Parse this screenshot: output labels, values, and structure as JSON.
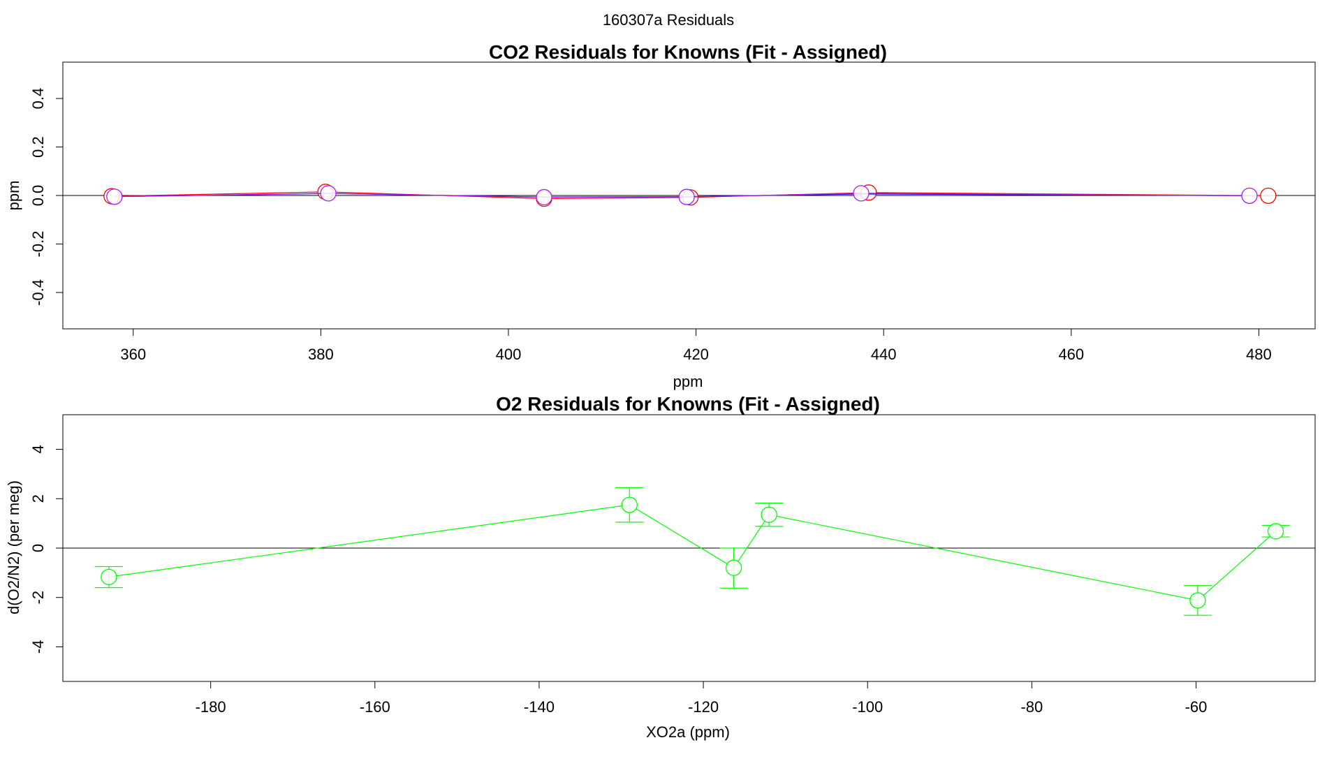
{
  "figure": {
    "suptitle": "160307a  Residuals"
  },
  "chart_data": [
    {
      "type": "line",
      "title": "CO2 Residuals for Knowns (Fit - Assigned)",
      "xlabel": "ppm",
      "ylabel": "ppm",
      "xlim": [
        352.5,
        486
      ],
      "ylim": [
        -0.55,
        0.55
      ],
      "x_ticks": [
        "360",
        "380",
        "400",
        "420",
        "440",
        "460",
        "480"
      ],
      "x_tick_values": [
        360,
        380,
        400,
        420,
        440,
        460,
        480
      ],
      "y_ticks": [
        "-0.4",
        "-0.2",
        "0.0",
        "0.2",
        "0.4"
      ],
      "y_tick_values": [
        -0.4,
        -0.2,
        0.0,
        0.2,
        0.4
      ],
      "reference_line_y": 0,
      "series": [
        {
          "color": "#ff0000",
          "marker": "open-circle",
          "x": [
            357.7,
            380.5,
            403.8,
            419.4,
            438.4,
            481.0
          ],
          "y": [
            -0.003,
            0.015,
            -0.013,
            -0.008,
            0.012,
            -0.001
          ]
        },
        {
          "color": "#0000ff",
          "marker": "none",
          "x": [
            358.0,
            380.8,
            403.8,
            419.0,
            437.6,
            479.0
          ],
          "y": [
            -0.005,
            0.008,
            -0.006,
            -0.005,
            0.006,
            -0.001
          ]
        },
        {
          "color": "#a020f0",
          "marker": "open-circle",
          "x": [
            358.0,
            380.8,
            403.8,
            419.0,
            437.6,
            479.0
          ],
          "y": [
            -0.005,
            0.009,
            -0.007,
            -0.006,
            0.009,
            -0.001
          ]
        }
      ]
    },
    {
      "type": "line",
      "title": "O2 Residuals for Knowns (Fit - Assigned)",
      "xlabel": "XO2a (ppm)",
      "ylabel": "d(O2/N2) (per meg)",
      "xlim": [
        -198,
        -45.5
      ],
      "ylim": [
        -5.4,
        5.4
      ],
      "x_ticks": [
        "-180",
        "-160",
        "-140",
        "-120",
        "-100",
        "-80",
        "-60"
      ],
      "x_tick_values": [
        -180,
        -160,
        -140,
        -120,
        -100,
        -80,
        -60
      ],
      "y_ticks": [
        "-4",
        "-2",
        "0",
        "2",
        "4"
      ],
      "y_tick_values": [
        -4,
        -2,
        0,
        2,
        4
      ],
      "reference_line_y": 0,
      "series": [
        {
          "color": "#00ff00",
          "marker": "open-circle",
          "x": [
            -192.4,
            -129.0,
            -116.3,
            -112.0,
            -59.8,
            -50.3
          ],
          "y": [
            -1.17,
            1.75,
            -0.8,
            1.35,
            -2.12,
            0.68
          ],
          "err_low": [
            -1.6,
            1.05,
            -1.62,
            0.88,
            -2.72,
            0.45
          ],
          "err_high": [
            -0.75,
            2.45,
            0.0,
            1.82,
            -1.52,
            0.92
          ]
        }
      ]
    }
  ]
}
